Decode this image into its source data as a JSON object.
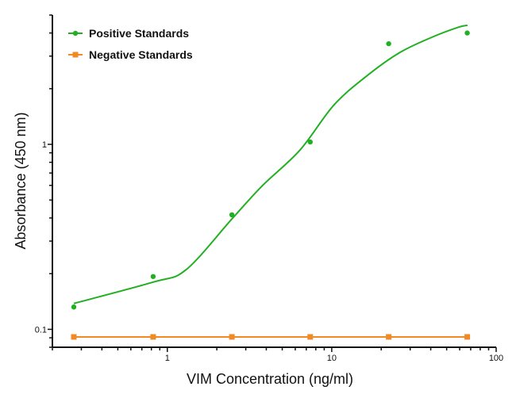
{
  "chart_data": {
    "type": "scatter",
    "title": "",
    "xlabel": "VIM Concentration (ng/ml)",
    "ylabel": "Absorbance (450 nm)",
    "xscale": "log",
    "yscale": "log",
    "xlim": [
      0.2,
      100
    ],
    "ylim": [
      0.08,
      5
    ],
    "x_tick_labels": [
      "1",
      "10",
      "100"
    ],
    "x_tick_values": [
      1,
      10,
      100
    ],
    "y_tick_labels": [
      "0.1",
      "1"
    ],
    "y_tick_values": [
      0.1,
      1
    ],
    "grid": false,
    "legend_position": "top-left",
    "x": [
      0.27,
      0.82,
      2.47,
      7.4,
      22.2,
      66.7
    ],
    "series": [
      {
        "name": "Positive Standards",
        "color": "#22b022",
        "marker": "circle",
        "line": "fitted-curve",
        "values": [
          0.132,
          0.193,
          0.416,
          1.03,
          3.5,
          4.0
        ],
        "fit_curve": {
          "x": [
            0.27,
            0.82,
            1.3,
            2.47,
            3.8,
            6.4,
            10.3,
            16.3,
            26,
            41.7,
            59,
            67
          ],
          "y": [
            0.138,
            0.18,
            0.21,
            0.395,
            0.6,
            0.93,
            1.63,
            2.34,
            3.14,
            3.83,
            4.3,
            4.4
          ]
        }
      },
      {
        "name": "Negative Standards",
        "color": "#f08a24",
        "marker": "square",
        "line": "connected",
        "values": [
          0.091,
          0.091,
          0.091,
          0.091,
          0.091,
          0.091
        ]
      }
    ]
  }
}
